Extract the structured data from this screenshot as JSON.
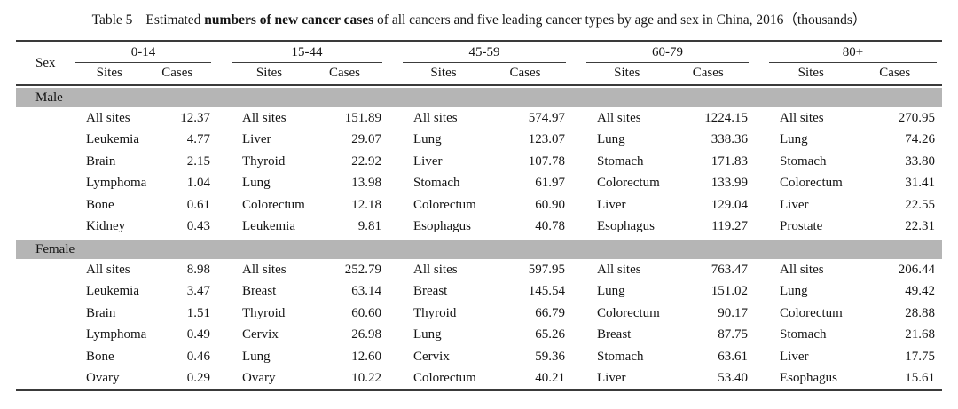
{
  "title": {
    "table_no": "Table 5",
    "estimated": "Estimated ",
    "bold": "numbers of new cancer cases",
    "rest": " of all cancers and five leading cancer types by age and sex in China, 2016（thousands）"
  },
  "table": {
    "sex_header": "Sex",
    "age_groups": [
      "0-14",
      "15-44",
      "45-59",
      "60-79",
      "80+"
    ],
    "subheaders": {
      "sites": "Sites",
      "cases": "Cases"
    },
    "banner_color": "#b5b5b5",
    "rule_color": "#3a3a3a",
    "sections": [
      {
        "sex": "Male",
        "rows": [
          [
            {
              "site": "All sites",
              "cases": "12.37"
            },
            {
              "site": "All sites",
              "cases": "151.89"
            },
            {
              "site": "All sites",
              "cases": "574.97"
            },
            {
              "site": "All sites",
              "cases": "1224.15"
            },
            {
              "site": "All sites",
              "cases": "270.95"
            }
          ],
          [
            {
              "site": "Leukemia",
              "cases": "4.77"
            },
            {
              "site": "Liver",
              "cases": "29.07"
            },
            {
              "site": "Lung",
              "cases": "123.07"
            },
            {
              "site": "Lung",
              "cases": "338.36"
            },
            {
              "site": "Lung",
              "cases": "74.26"
            }
          ],
          [
            {
              "site": "Brain",
              "cases": "2.15"
            },
            {
              "site": "Thyroid",
              "cases": "22.92"
            },
            {
              "site": "Liver",
              "cases": "107.78"
            },
            {
              "site": "Stomach",
              "cases": "171.83"
            },
            {
              "site": "Stomach",
              "cases": "33.80"
            }
          ],
          [
            {
              "site": "Lymphoma",
              "cases": "1.04"
            },
            {
              "site": "Lung",
              "cases": "13.98"
            },
            {
              "site": "Stomach",
              "cases": "61.97"
            },
            {
              "site": "Colorectum",
              "cases": "133.99"
            },
            {
              "site": "Colorectum",
              "cases": "31.41"
            }
          ],
          [
            {
              "site": "Bone",
              "cases": "0.61"
            },
            {
              "site": "Colorectum",
              "cases": "12.18"
            },
            {
              "site": "Colorectum",
              "cases": "60.90"
            },
            {
              "site": "Liver",
              "cases": "129.04"
            },
            {
              "site": "Liver",
              "cases": "22.55"
            }
          ],
          [
            {
              "site": "Kidney",
              "cases": "0.43"
            },
            {
              "site": "Leukemia",
              "cases": "9.81"
            },
            {
              "site": "Esophagus",
              "cases": "40.78"
            },
            {
              "site": "Esophagus",
              "cases": "119.27"
            },
            {
              "site": "Prostate",
              "cases": "22.31"
            }
          ]
        ]
      },
      {
        "sex": "Female",
        "rows": [
          [
            {
              "site": "All sites",
              "cases": "8.98"
            },
            {
              "site": "All sites",
              "cases": "252.79"
            },
            {
              "site": "All sites",
              "cases": "597.95"
            },
            {
              "site": "All sites",
              "cases": "763.47"
            },
            {
              "site": "All sites",
              "cases": "206.44"
            }
          ],
          [
            {
              "site": "Leukemia",
              "cases": "3.47"
            },
            {
              "site": "Breast",
              "cases": "63.14"
            },
            {
              "site": "Breast",
              "cases": "145.54"
            },
            {
              "site": "Lung",
              "cases": "151.02"
            },
            {
              "site": "Lung",
              "cases": "49.42"
            }
          ],
          [
            {
              "site": "Brain",
              "cases": "1.51"
            },
            {
              "site": "Thyroid",
              "cases": "60.60"
            },
            {
              "site": "Thyroid",
              "cases": "66.79"
            },
            {
              "site": "Colorectum",
              "cases": "90.17"
            },
            {
              "site": "Colorectum",
              "cases": "28.88"
            }
          ],
          [
            {
              "site": "Lymphoma",
              "cases": "0.49"
            },
            {
              "site": "Cervix",
              "cases": "26.98"
            },
            {
              "site": "Lung",
              "cases": "65.26"
            },
            {
              "site": "Breast",
              "cases": "87.75"
            },
            {
              "site": "Stomach",
              "cases": "21.68"
            }
          ],
          [
            {
              "site": "Bone",
              "cases": "0.46"
            },
            {
              "site": "Lung",
              "cases": "12.60"
            },
            {
              "site": "Cervix",
              "cases": "59.36"
            },
            {
              "site": "Stomach",
              "cases": "63.61"
            },
            {
              "site": "Liver",
              "cases": "17.75"
            }
          ],
          [
            {
              "site": "Ovary",
              "cases": "0.29"
            },
            {
              "site": "Ovary",
              "cases": "10.22"
            },
            {
              "site": "Colorectum",
              "cases": "40.21"
            },
            {
              "site": "Liver",
              "cases": "53.40"
            },
            {
              "site": "Esophagus",
              "cases": "15.61"
            }
          ]
        ]
      }
    ]
  }
}
